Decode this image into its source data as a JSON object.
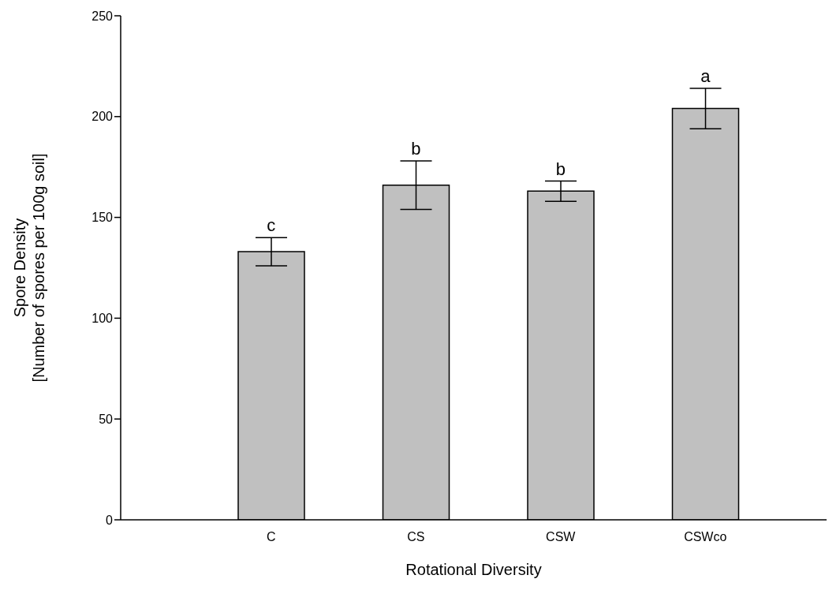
{
  "chart_data": {
    "type": "bar",
    "xlabel": "Rotational Diversity",
    "ylabel": "Spore Density\n[Number of spores per 100g soil]",
    "categories": [
      "C",
      "CS",
      "CSW",
      "CSWco"
    ],
    "values": [
      133,
      166,
      163,
      204
    ],
    "errors": [
      7,
      12,
      5,
      10
    ],
    "color": "#c0c0c0",
    "ylim": [
      0,
      250
    ],
    "yticks": [
      0,
      50,
      100,
      150,
      200,
      250
    ],
    "grid": false,
    "legend": false,
    "annotations": [
      {
        "text": "c",
        "x": "C",
        "y": 140
      },
      {
        "text": "b",
        "x": "CS",
        "y": 178
      },
      {
        "text": "b",
        "x": "CSW",
        "y": 168
      },
      {
        "text": "a",
        "x": "CSWco",
        "y": 214
      }
    ]
  }
}
